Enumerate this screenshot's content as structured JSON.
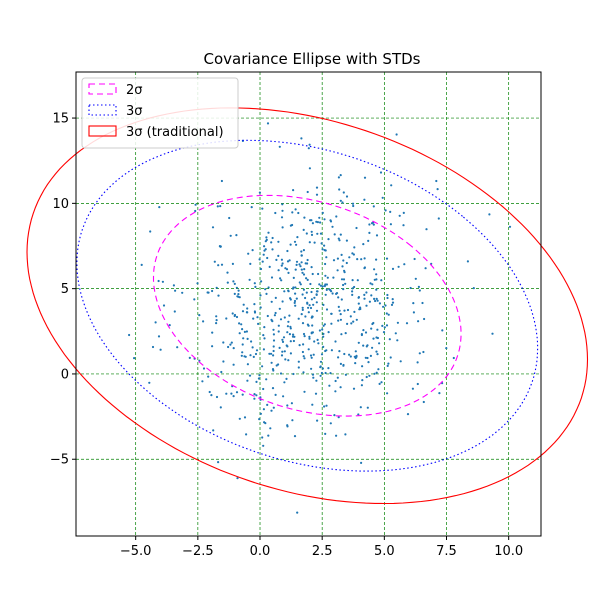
{
  "chart_data": {
    "type": "scatter",
    "title": "Covariance Ellipse with STDs",
    "xlabel": "",
    "ylabel": "",
    "xlim": [
      -7.4,
      11.3
    ],
    "ylim": [
      -9.5,
      17.7
    ],
    "xticks": [
      -5.0,
      -2.5,
      0.0,
      2.5,
      5.0,
      7.5,
      10.0
    ],
    "xtick_labels": [
      "−5.0",
      "−2.5",
      "0.0",
      "2.5",
      "5.0",
      "7.5",
      "10.0"
    ],
    "yticks": [
      -5,
      0,
      5,
      10,
      15
    ],
    "ytick_labels": [
      "−5",
      "0",
      "5",
      "10",
      "15"
    ],
    "grid": true,
    "grid_color": "#008000",
    "grid_style": "dashed",
    "legend_position": "upper left",
    "scatter_color": "#1f77b4",
    "scatter_point_count": 700,
    "scatter_center": [
      2.0,
      4.0
    ],
    "scatter_std": [
      2.5,
      3.7
    ],
    "scatter_correlation": 0.15,
    "ellipses": [
      {
        "name": "2σ",
        "center": [
          1.9,
          4.0
        ],
        "width": 10.9,
        "height": 14.2,
        "angle": 40,
        "color": "#ff00ff",
        "linestyle": "dashed"
      },
      {
        "name": "3σ",
        "center": [
          1.9,
          4.0
        ],
        "width": 16.3,
        "height": 21.3,
        "angle": 40,
        "color": "#0000ff",
        "linestyle": "dotted"
      },
      {
        "name": "3σ (traditional)",
        "center": [
          1.9,
          4.0
        ],
        "width": 19.5,
        "height": 25.8,
        "angle": 42,
        "color": "#ff0000",
        "linestyle": "solid"
      }
    ]
  }
}
